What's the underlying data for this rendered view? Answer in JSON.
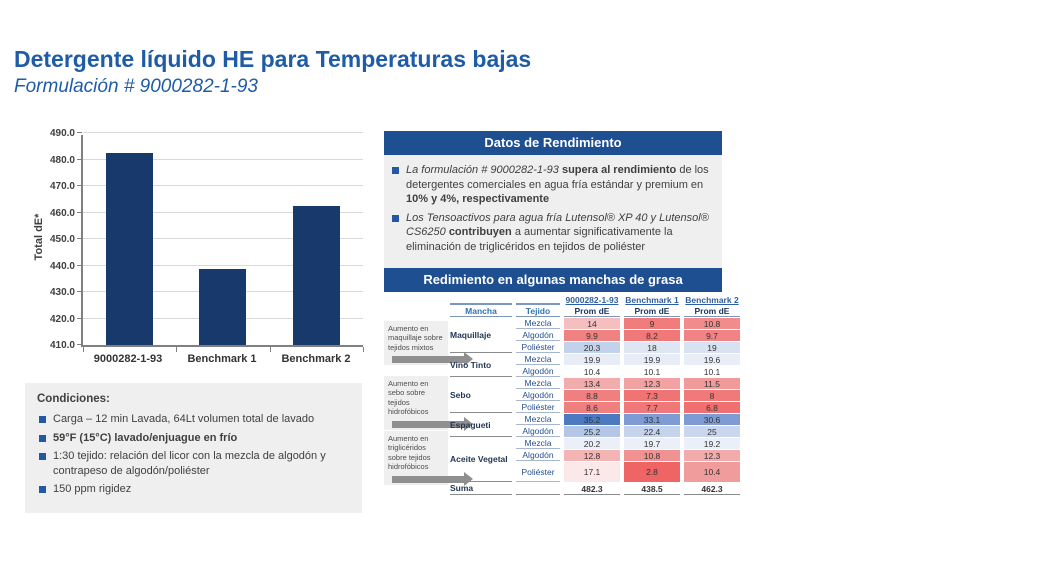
{
  "header": {
    "title": "Detergente líquido HE para Temperaturas bajas",
    "subtitle": "Formulación # 9000282-1-93"
  },
  "colors": {
    "header-blue": "#1E4F91",
    "bar-navy": "#17396B",
    "title-blue": "#1F5CA8",
    "bullet-blue": "#2159A5",
    "link-blue": "#2E5FA3",
    "table-navy": "#17375E",
    "panel-gray": "#EFEFEF"
  },
  "chart_data": {
    "type": "bar",
    "categories": [
      "9000282-1-93",
      "Benchmark 1",
      "Benchmark 2"
    ],
    "values": [
      482.3,
      438.5,
      462.3
    ],
    "title": "",
    "xlabel": "",
    "ylabel": "Total dE*",
    "ylim": [
      410,
      490
    ],
    "ytick_step": 10,
    "yticks": [
      "410.0",
      "420.0",
      "430.0",
      "440.0",
      "450.0",
      "460.0",
      "470.0",
      "480.0",
      "490.0"
    ],
    "grid": true,
    "bar_color": "#17396B"
  },
  "conditions": {
    "title": "Condiciones:",
    "bullets": [
      [
        {
          "t": "Carga – 12 min Lavada, 64Lt volumen total de lavado",
          "s": ""
        }
      ],
      [
        {
          "t": "59°F (15°C) lavado/enjuague en frío",
          "s": "b"
        }
      ],
      [
        {
          "t": "1:30 tejido: relación del licor con la mezcla de algodón y contrapeso de algodón/poliéster",
          "s": ""
        }
      ],
      [
        {
          "t": "150 ppm rigidez",
          "s": ""
        }
      ]
    ]
  },
  "datos": {
    "title": "Datos de Rendimiento",
    "bullets": [
      [
        {
          "t": "La formulación # 9000282-1-93 ",
          "s": "i"
        },
        {
          "t": "supera al rendimiento",
          "s": "b"
        },
        {
          "t": " de los detergentes comerciales en agua fría estándar y premium  en ",
          "s": ""
        },
        {
          "t": "10% y 4%, respectivamente",
          "s": "b"
        }
      ],
      [
        {
          "t": "Los Tensoactivos para agua fría Lutensol® XP 40 y Lutensol® CS6250 ",
          "s": "i"
        },
        {
          "t": "contribuyen",
          "s": "b"
        },
        {
          "t": " a aumentar  significativamente  la eliminación  de triglicéridos en tejidos de poliéster",
          "s": ""
        }
      ]
    ]
  },
  "stain_table": {
    "title": "Redimiento en algunas manchas de grasa",
    "group_headers": [
      "9000282-1-93",
      "Benchmark 1",
      "Benchmark 2"
    ],
    "sub_headers": [
      "Mancha",
      "Tejido",
      "Prom dE",
      "Prom dE",
      "Prom dE"
    ],
    "annotations": [
      "Aumento en maquillaje sobre tejidos mixtos",
      "Aumento en sebo sobre tejidos hidrofóbicos",
      "Aumento en triglicéridos sobre tejidos hidrofóbicos"
    ],
    "groups": [
      {
        "mancha": "Maquillaje",
        "rows": [
          {
            "tejido": "Mezcla",
            "cells": [
              {
                "v": "14",
                "bg": "#F5BFBF"
              },
              {
                "v": "9",
                "bg": "#F07C7C"
              },
              {
                "v": "10.8",
                "bg": "#F18C8C"
              }
            ]
          },
          {
            "tejido": "Algodón",
            "cells": [
              {
                "v": "9.9",
                "bg": "#F08282"
              },
              {
                "v": "8.2",
                "bg": "#F07878"
              },
              {
                "v": "9.7",
                "bg": "#F08484"
              }
            ]
          },
          {
            "tejido": "Poliéster",
            "cells": [
              {
                "v": "20.3",
                "bg": "#C3D2EB"
              },
              {
                "v": "18",
                "bg": "#DEE6F3"
              },
              {
                "v": "19",
                "bg": "#D8E2F1"
              }
            ]
          }
        ]
      },
      {
        "mancha": "Vino Tinto",
        "rows": [
          {
            "tejido": "Mezcla",
            "cells": [
              {
                "v": "19.9",
                "bg": "#E7ECF7"
              },
              {
                "v": "19.9",
                "bg": "#E7ECF7"
              },
              {
                "v": "19.6",
                "bg": "#E9EDF7"
              }
            ]
          },
          {
            "tejido": "Algodón",
            "cells": [
              {
                "v": "10.4",
                "bg": "#FFFFFF"
              },
              {
                "v": "10.1",
                "bg": "#FFFFFF"
              },
              {
                "v": "10.1",
                "bg": "#FFFFFF"
              }
            ]
          }
        ]
      },
      {
        "mancha": "Sebo",
        "rows": [
          {
            "tejido": "Mezcla",
            "cells": [
              {
                "v": "13.4",
                "bg": "#F3ACAC"
              },
              {
                "v": "12.3",
                "bg": "#F2A2A2"
              },
              {
                "v": "11.5",
                "bg": "#F19A9A"
              }
            ]
          },
          {
            "tejido": "Algodón",
            "cells": [
              {
                "v": "8.8",
                "bg": "#F08080"
              },
              {
                "v": "7.3",
                "bg": "#F07474"
              },
              {
                "v": "8",
                "bg": "#F07A7A"
              }
            ]
          },
          {
            "tejido": "Poliéster",
            "cells": [
              {
                "v": "8.6",
                "bg": "#F08080"
              },
              {
                "v": "7.7",
                "bg": "#F07878"
              },
              {
                "v": "6.8",
                "bg": "#F07070"
              }
            ]
          }
        ]
      },
      {
        "mancha": "Espagueti",
        "rows": [
          {
            "tejido": "Mezcla",
            "cells": [
              {
                "v": "35.2",
                "bg": "#4D79C1"
              },
              {
                "v": "33.1",
                "bg": "#7E9CD3"
              },
              {
                "v": "30.6",
                "bg": "#7E9CD3"
              }
            ]
          },
          {
            "tejido": "Algodón",
            "cells": [
              {
                "v": "25.2",
                "bg": "#B3C6E6"
              },
              {
                "v": "22.4",
                "bg": "#C6D3EC"
              },
              {
                "v": "25",
                "bg": "#C9D6ED"
              }
            ]
          }
        ]
      },
      {
        "mancha": "Aceite Vegetal",
        "rows": [
          {
            "tejido": "Mezcla",
            "cells": [
              {
                "v": "20.2",
                "bg": "#EAEFF8"
              },
              {
                "v": "19.7",
                "bg": "#EAEFF8"
              },
              {
                "v": "19.2",
                "bg": "#EAEFF8"
              }
            ]
          },
          {
            "tejido": "Algodón",
            "cells": [
              {
                "v": "12.8",
                "bg": "#F4B4B4"
              },
              {
                "v": "10.8",
                "bg": "#F19292"
              },
              {
                "v": "12.3",
                "bg": "#F3AAAA"
              }
            ]
          },
          {
            "tejido": "Poliéster",
            "tall": true,
            "cells": [
              {
                "v": "17.1",
                "bg": "#FBE9E9"
              },
              {
                "v": "2.8",
                "bg": "#EF6464"
              },
              {
                "v": "10.4",
                "bg": "#F19C9C"
              }
            ]
          }
        ]
      },
      {
        "mancha": "Suma",
        "sum": true,
        "rows": [
          {
            "tejido": "",
            "cells": [
              {
                "v": "482.3"
              },
              {
                "v": "438.5"
              },
              {
                "v": "462.3"
              }
            ]
          }
        ]
      }
    ]
  }
}
